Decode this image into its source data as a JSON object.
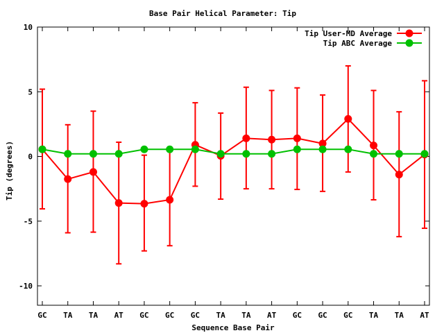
{
  "chart_data": {
    "type": "line",
    "title": "Base Pair Helical Parameter: Tip",
    "xlabel": "Sequence Base Pair",
    "ylabel": "Tip (degrees)",
    "ylim": [
      -11.5,
      10
    ],
    "yticks": [
      10,
      5,
      0,
      -5,
      -10
    ],
    "categories": [
      "GC",
      "TA",
      "TA",
      "AT",
      "GC",
      "GC",
      "GC",
      "TA",
      "TA",
      "AT",
      "GC",
      "GC",
      "GC",
      "TA",
      "TA",
      "AT"
    ],
    "legend_position": "top-right",
    "grid": false,
    "series": [
      {
        "name": "Tip User-MD Average",
        "color": "#ff0000",
        "values": [
          0.55,
          -1.75,
          -1.2,
          -3.6,
          -3.65,
          -3.35,
          0.9,
          0.05,
          1.4,
          1.3,
          1.4,
          1.0,
          2.9,
          0.85,
          -1.4,
          0.15
        ],
        "err_low": [
          -4.05,
          -5.9,
          -5.85,
          -8.3,
          -7.3,
          -6.9,
          -2.3,
          -3.3,
          -2.5,
          -2.5,
          -2.55,
          -2.7,
          -1.2,
          -3.35,
          -6.2,
          -5.55
        ],
        "err_high": [
          5.2,
          2.45,
          3.5,
          1.1,
          0.1,
          0.4,
          4.15,
          3.35,
          5.35,
          5.1,
          5.3,
          4.75,
          7.0,
          5.1,
          3.45,
          5.85
        ]
      },
      {
        "name": "Tip ABC Average",
        "color": "#00c000",
        "values": [
          0.55,
          0.2,
          0.2,
          0.2,
          0.55,
          0.55,
          0.55,
          0.2,
          0.2,
          0.2,
          0.55,
          0.55,
          0.55,
          0.2,
          0.2,
          0.2
        ]
      }
    ]
  }
}
